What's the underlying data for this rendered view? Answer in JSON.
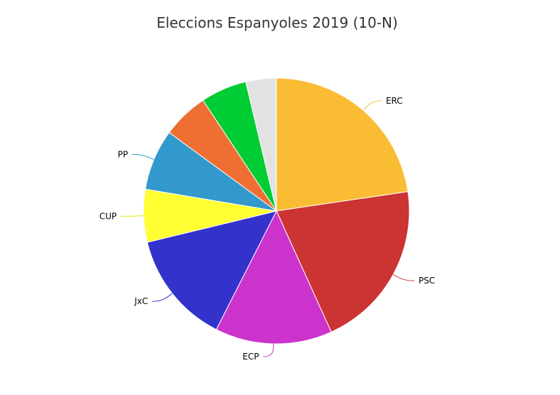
{
  "chart_data": {
    "type": "pie",
    "title": "Eleccions Espanyoles 2019 (10-N)",
    "slices": [
      {
        "label": "ERC",
        "value": 22.6,
        "color": "#f9bc33"
      },
      {
        "label": "PSC",
        "value": 20.5,
        "color": "#cc3333"
      },
      {
        "label": "ECP",
        "value": 14.2,
        "color": "#cc33cc"
      },
      {
        "label": "JxC",
        "value": 13.7,
        "color": "#3333cc"
      },
      {
        "label": "CUP",
        "value": 6.4,
        "color": "#ffff33"
      },
      {
        "label": "PP",
        "value": 7.4,
        "color": "#3399cc"
      },
      {
        "label": "",
        "value": 5.6,
        "color": "#ee6e33"
      },
      {
        "label": "",
        "value": 5.6,
        "color": "#00cc33"
      },
      {
        "label": "",
        "value": 3.7,
        "color": "#e2e2e2"
      }
    ]
  }
}
